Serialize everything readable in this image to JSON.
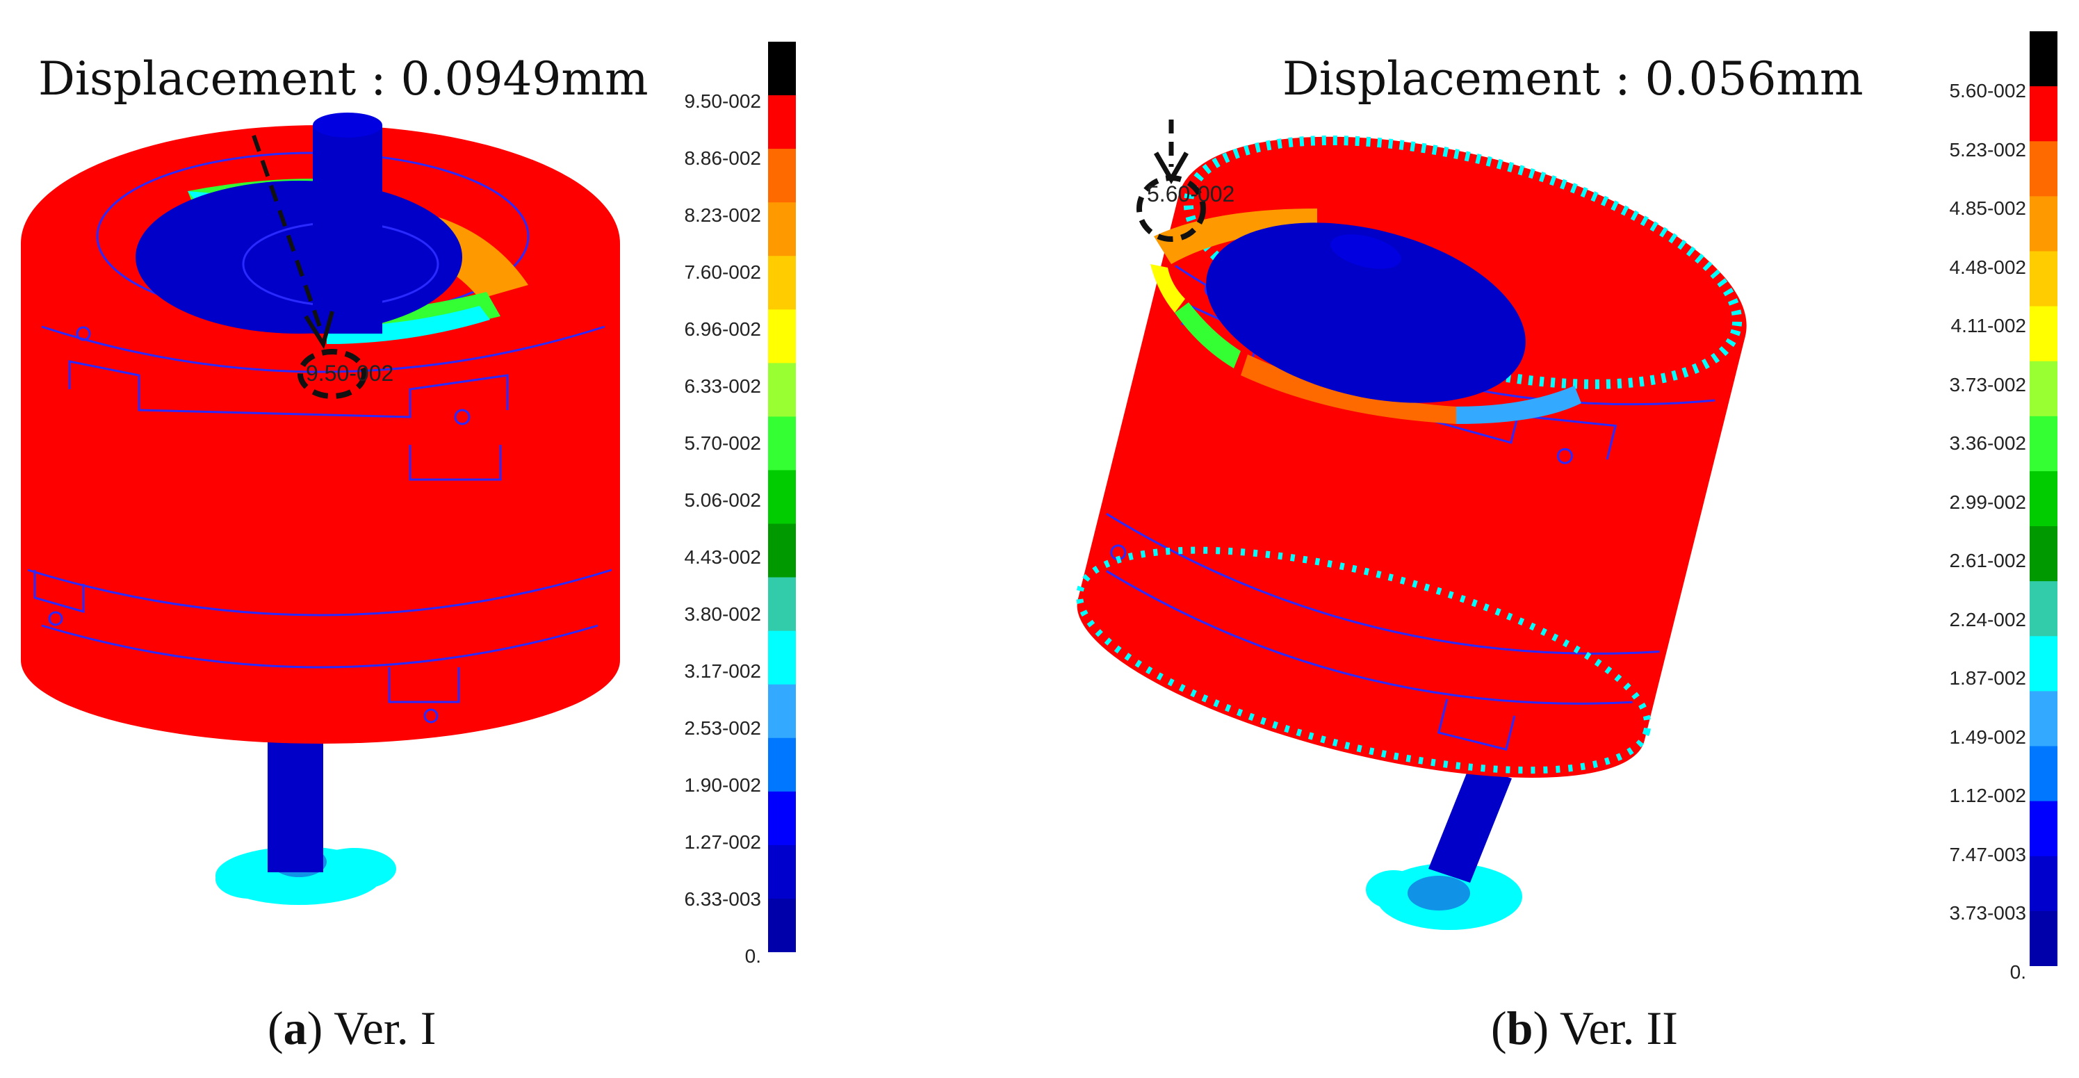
{
  "panels": [
    {
      "id": "a",
      "title": "Displacement : 0.0949mm",
      "annotation": "9.50-002",
      "caption_letter": "a",
      "caption_text": "Ver. I",
      "legend_labels": [
        "9.50-002",
        "8.86-002",
        "8.23-002",
        "7.60-002",
        "6.96-002",
        "6.33-002",
        "5.70-002",
        "5.06-002",
        "4.43-002",
        "3.80-002",
        "3.17-002",
        "2.53-002",
        "1.90-002",
        "1.27-002",
        "6.33-003",
        "0."
      ]
    },
    {
      "id": "b",
      "title": "Displacement : 0.056mm",
      "annotation": "5.60-002",
      "caption_letter": "b",
      "caption_text": "Ver. II",
      "legend_labels": [
        "5.60-002",
        "5.23-002",
        "4.85-002",
        "4.48-002",
        "4.11-002",
        "3.73-002",
        "3.36-002",
        "2.99-002",
        "2.61-002",
        "2.24-002",
        "1.87-002",
        "1.49-002",
        "1.12-002",
        "7.47-003",
        "3.73-003",
        "0."
      ]
    }
  ],
  "colors": {
    "scale": [
      "#000000",
      "#ff0000",
      "#ff6a00",
      "#ff9900",
      "#ffcc00",
      "#ffff00",
      "#99ff33",
      "#33ff33",
      "#00cc00",
      "#009900",
      "#33ccaa",
      "#00ffff",
      "#33aaff",
      "#0077ff",
      "#0000ff",
      "#0000cc",
      "#0000aa"
    ],
    "body": "#ff0000",
    "shaft": "#0000c8",
    "support": "#00ffff"
  }
}
